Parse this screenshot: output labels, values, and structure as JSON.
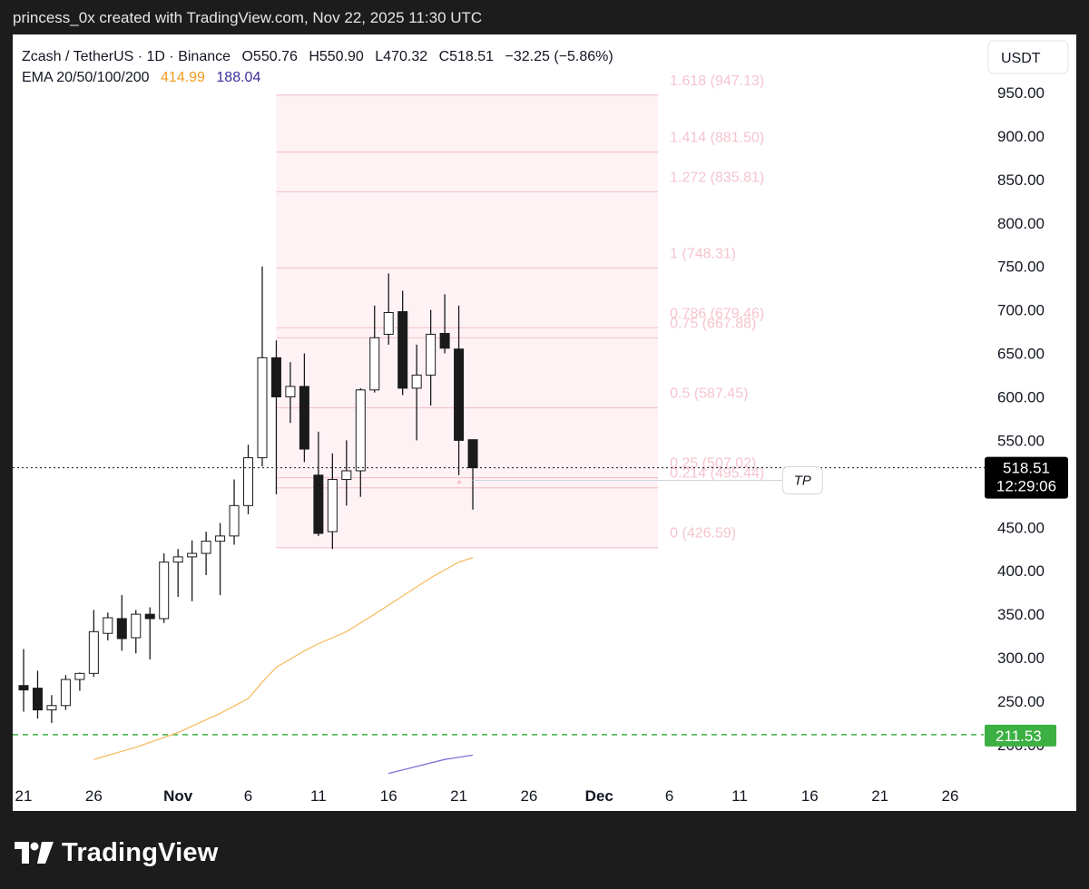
{
  "header": {
    "caption": "princess_0x created with TradingView.com, Nov 22, 2025 11:30 UTC"
  },
  "footer": {
    "brand": "TradingView"
  },
  "colors": {
    "bull_body": "#ffffff",
    "bear_body": "#1a1a1a",
    "wick": "#1a1a1a",
    "ema_20": "#f7b24a",
    "ema_50": "#6a5acd",
    "fib_line": "#f5c4ce",
    "fib_fill": "#fdeef1",
    "fib_label": "#f5c4ce",
    "support_line": "#3cb043",
    "support_badge": "#3cb043",
    "price_badge": "#000000"
  },
  "chart_data": {
    "type": "candlestick",
    "title": "Zcash / TetherUS · 1D · Binance",
    "ohlc_text": {
      "o": "O550.76",
      "h": "H550.90",
      "l": "L470.32",
      "c": "C518.51",
      "chg": "−32.25 (−5.86%)"
    },
    "indicator": {
      "label": "EMA 20/50/100/200",
      "v1": "414.99",
      "v2": "188.04"
    },
    "currency": "USDT",
    "ylim": [
      165,
      1000
    ],
    "y_ticks": [
      {
        "v": 200,
        "t": "200.00"
      },
      {
        "v": 250,
        "t": "250.00"
      },
      {
        "v": 300,
        "t": "300.00"
      },
      {
        "v": 350,
        "t": "350.00"
      },
      {
        "v": 400,
        "t": "400.00"
      },
      {
        "v": 450,
        "t": "450.00"
      },
      {
        "v": 500,
        "t": "500.00"
      },
      {
        "v": 550,
        "t": "550.00"
      },
      {
        "v": 600,
        "t": "600.00"
      },
      {
        "v": 650,
        "t": "650.00"
      },
      {
        "v": 700,
        "t": "700.00"
      },
      {
        "v": 750,
        "t": "750.00"
      },
      {
        "v": 800,
        "t": "800.00"
      },
      {
        "v": 850,
        "t": "850.00"
      },
      {
        "v": 900,
        "t": "900.00"
      },
      {
        "v": 950,
        "t": "950.00"
      }
    ],
    "x_ticks": [
      {
        "day": 0,
        "t": "21",
        "bold": false
      },
      {
        "day": 5,
        "t": "26",
        "bold": false
      },
      {
        "day": 11,
        "t": "Nov",
        "bold": true
      },
      {
        "day": 16,
        "t": "6",
        "bold": false
      },
      {
        "day": 21,
        "t": "11",
        "bold": false
      },
      {
        "day": 26,
        "t": "16",
        "bold": false
      },
      {
        "day": 31,
        "t": "21",
        "bold": false
      },
      {
        "day": 36,
        "t": "26",
        "bold": false
      },
      {
        "day": 41,
        "t": "Dec",
        "bold": true
      },
      {
        "day": 46,
        "t": "6",
        "bold": false
      },
      {
        "day": 51,
        "t": "11",
        "bold": false
      },
      {
        "day": 56,
        "t": "16",
        "bold": false
      },
      {
        "day": 61,
        "t": "21",
        "bold": false
      },
      {
        "day": 66,
        "t": "26",
        "bold": false
      }
    ],
    "candles": [
      {
        "day": 0,
        "o": 268,
        "h": 310,
        "l": 238,
        "c": 263
      },
      {
        "day": 1,
        "o": 265,
        "h": 285,
        "l": 230,
        "c": 240
      },
      {
        "day": 2,
        "o": 240,
        "h": 257,
        "l": 225,
        "c": 245
      },
      {
        "day": 3,
        "o": 245,
        "h": 280,
        "l": 240,
        "c": 275
      },
      {
        "day": 4,
        "o": 275,
        "h": 283,
        "l": 262,
        "c": 282
      },
      {
        "day": 5,
        "o": 282,
        "h": 355,
        "l": 278,
        "c": 330
      },
      {
        "day": 6,
        "o": 328,
        "h": 352,
        "l": 320,
        "c": 346
      },
      {
        "day": 7,
        "o": 345,
        "h": 372,
        "l": 308,
        "c": 322
      },
      {
        "day": 8,
        "o": 323,
        "h": 355,
        "l": 305,
        "c": 350
      },
      {
        "day": 9,
        "o": 350,
        "h": 358,
        "l": 298,
        "c": 345
      },
      {
        "day": 10,
        "o": 345,
        "h": 420,
        "l": 340,
        "c": 410
      },
      {
        "day": 11,
        "o": 410,
        "h": 425,
        "l": 370,
        "c": 416
      },
      {
        "day": 12,
        "o": 416,
        "h": 435,
        "l": 365,
        "c": 420
      },
      {
        "day": 13,
        "o": 420,
        "h": 445,
        "l": 395,
        "c": 434
      },
      {
        "day": 14,
        "o": 434,
        "h": 455,
        "l": 372,
        "c": 440
      },
      {
        "day": 15,
        "o": 440,
        "h": 505,
        "l": 430,
        "c": 475
      },
      {
        "day": 16,
        "o": 475,
        "h": 545,
        "l": 465,
        "c": 530
      },
      {
        "day": 17,
        "o": 530,
        "h": 750,
        "l": 520,
        "c": 645
      },
      {
        "day": 18,
        "o": 645,
        "h": 665,
        "l": 488,
        "c": 600
      },
      {
        "day": 19,
        "o": 600,
        "h": 640,
        "l": 570,
        "c": 612
      },
      {
        "day": 20,
        "o": 612,
        "h": 650,
        "l": 525,
        "c": 540
      },
      {
        "day": 21,
        "o": 510,
        "h": 560,
        "l": 440,
        "c": 443
      },
      {
        "day": 22,
        "o": 445,
        "h": 535,
        "l": 425,
        "c": 505
      },
      {
        "day": 23,
        "o": 505,
        "h": 550,
        "l": 475,
        "c": 515
      },
      {
        "day": 24,
        "o": 515,
        "h": 610,
        "l": 485,
        "c": 608
      },
      {
        "day": 25,
        "o": 608,
        "h": 705,
        "l": 605,
        "c": 668
      },
      {
        "day": 26,
        "o": 672,
        "h": 742,
        "l": 660,
        "c": 697
      },
      {
        "day": 27,
        "o": 698,
        "h": 722,
        "l": 602,
        "c": 610
      },
      {
        "day": 28,
        "o": 610,
        "h": 660,
        "l": 550,
        "c": 625
      },
      {
        "day": 29,
        "o": 625,
        "h": 700,
        "l": 590,
        "c": 672
      },
      {
        "day": 30,
        "o": 673,
        "h": 718,
        "l": 650,
        "c": 656
      },
      {
        "day": 31,
        "o": 655,
        "h": 705,
        "l": 510,
        "c": 550
      },
      {
        "day": 32,
        "o": 550.76,
        "h": 550.9,
        "l": 470.32,
        "c": 518.51
      }
    ],
    "ema_20": [
      {
        "day": 5,
        "v": 183
      },
      {
        "day": 8,
        "v": 197
      },
      {
        "day": 11,
        "v": 214
      },
      {
        "day": 14,
        "v": 236
      },
      {
        "day": 16,
        "v": 253
      },
      {
        "day": 17,
        "v": 272
      },
      {
        "day": 18,
        "v": 289
      },
      {
        "day": 20,
        "v": 308
      },
      {
        "day": 21,
        "v": 316
      },
      {
        "day": 23,
        "v": 330
      },
      {
        "day": 25,
        "v": 350
      },
      {
        "day": 27,
        "v": 371
      },
      {
        "day": 29,
        "v": 392
      },
      {
        "day": 31,
        "v": 410
      },
      {
        "day": 32,
        "v": 414.99
      }
    ],
    "ema_50": [
      {
        "day": 26,
        "v": 167
      },
      {
        "day": 28,
        "v": 175
      },
      {
        "day": 30,
        "v": 183
      },
      {
        "day": 32,
        "v": 188.04
      }
    ],
    "fib": {
      "from_day": 18,
      "to_day": 45,
      "levels": [
        {
          "v": 426.59,
          "t": "0 (426.59)"
        },
        {
          "v": 495.44,
          "t": "0.214 (495.44)"
        },
        {
          "v": 507.02,
          "t": "0.25 (507.02)"
        },
        {
          "v": 587.45,
          "t": "0.5 (587.45)"
        },
        {
          "v": 667.88,
          "t": "0.75 (667.88)"
        },
        {
          "v": 679.46,
          "t": "0.786 (679.46)"
        },
        {
          "v": 748.31,
          "t": "1 (748.31)"
        },
        {
          "v": 835.81,
          "t": "1.272 (835.81)"
        },
        {
          "v": 881.5,
          "t": "1.414 (881.50)"
        },
        {
          "v": 947.13,
          "t": "1.618 (947.13)"
        }
      ]
    },
    "tp": {
      "label": "TP",
      "v": 504,
      "from_day": 32,
      "to_day": 56
    },
    "support": {
      "v": 211.53,
      "t": "211.53"
    },
    "last_price": {
      "v": 518.51,
      "t": "518.51",
      "countdown": "12:29:06"
    }
  }
}
